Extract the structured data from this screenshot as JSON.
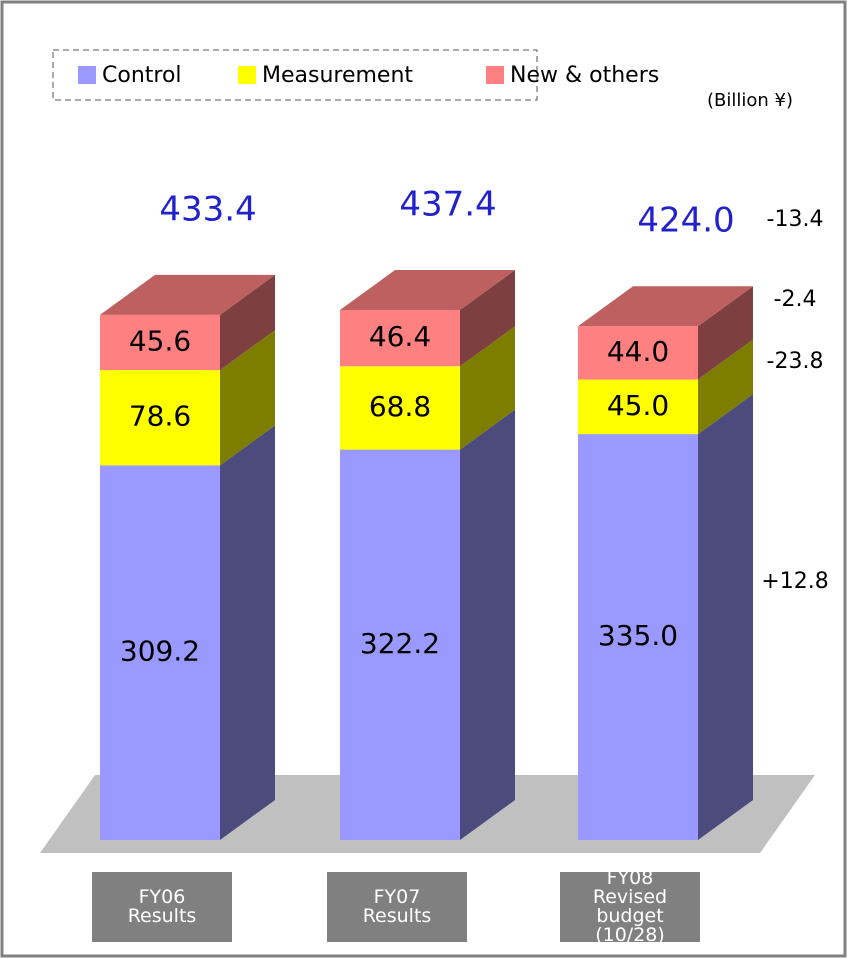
{
  "chart_data": {
    "type": "bar3d_stacked",
    "unit_label": "(Billion ¥)",
    "categories": [
      "FY06\nResults",
      "FY07\nResults",
      "FY08\nRevised budget\n(10/28)"
    ],
    "series": [
      {
        "name": "Control",
        "color": "#9999ff",
        "values": [
          309.2,
          322.2,
          335.0
        ],
        "value_labels": [
          "309.2",
          "322.2",
          "335.0"
        ]
      },
      {
        "name": "Measurement",
        "color": "#ffff00",
        "values": [
          78.6,
          68.8,
          45.0
        ],
        "value_labels": [
          "78.6",
          "68.8",
          "45.0"
        ]
      },
      {
        "name": "New & others",
        "color": "#ff8080",
        "values": [
          45.6,
          46.4,
          44.0
        ],
        "value_labels": [
          "45.6",
          "46.4",
          "44.0"
        ]
      }
    ],
    "totals": [
      433.4,
      437.4,
      424.0
    ],
    "total_labels": [
      "433.4",
      "437.4",
      "424.0"
    ],
    "annotations": [
      "-13.4",
      "-2.4",
      "-23.8",
      "+12.8"
    ]
  }
}
